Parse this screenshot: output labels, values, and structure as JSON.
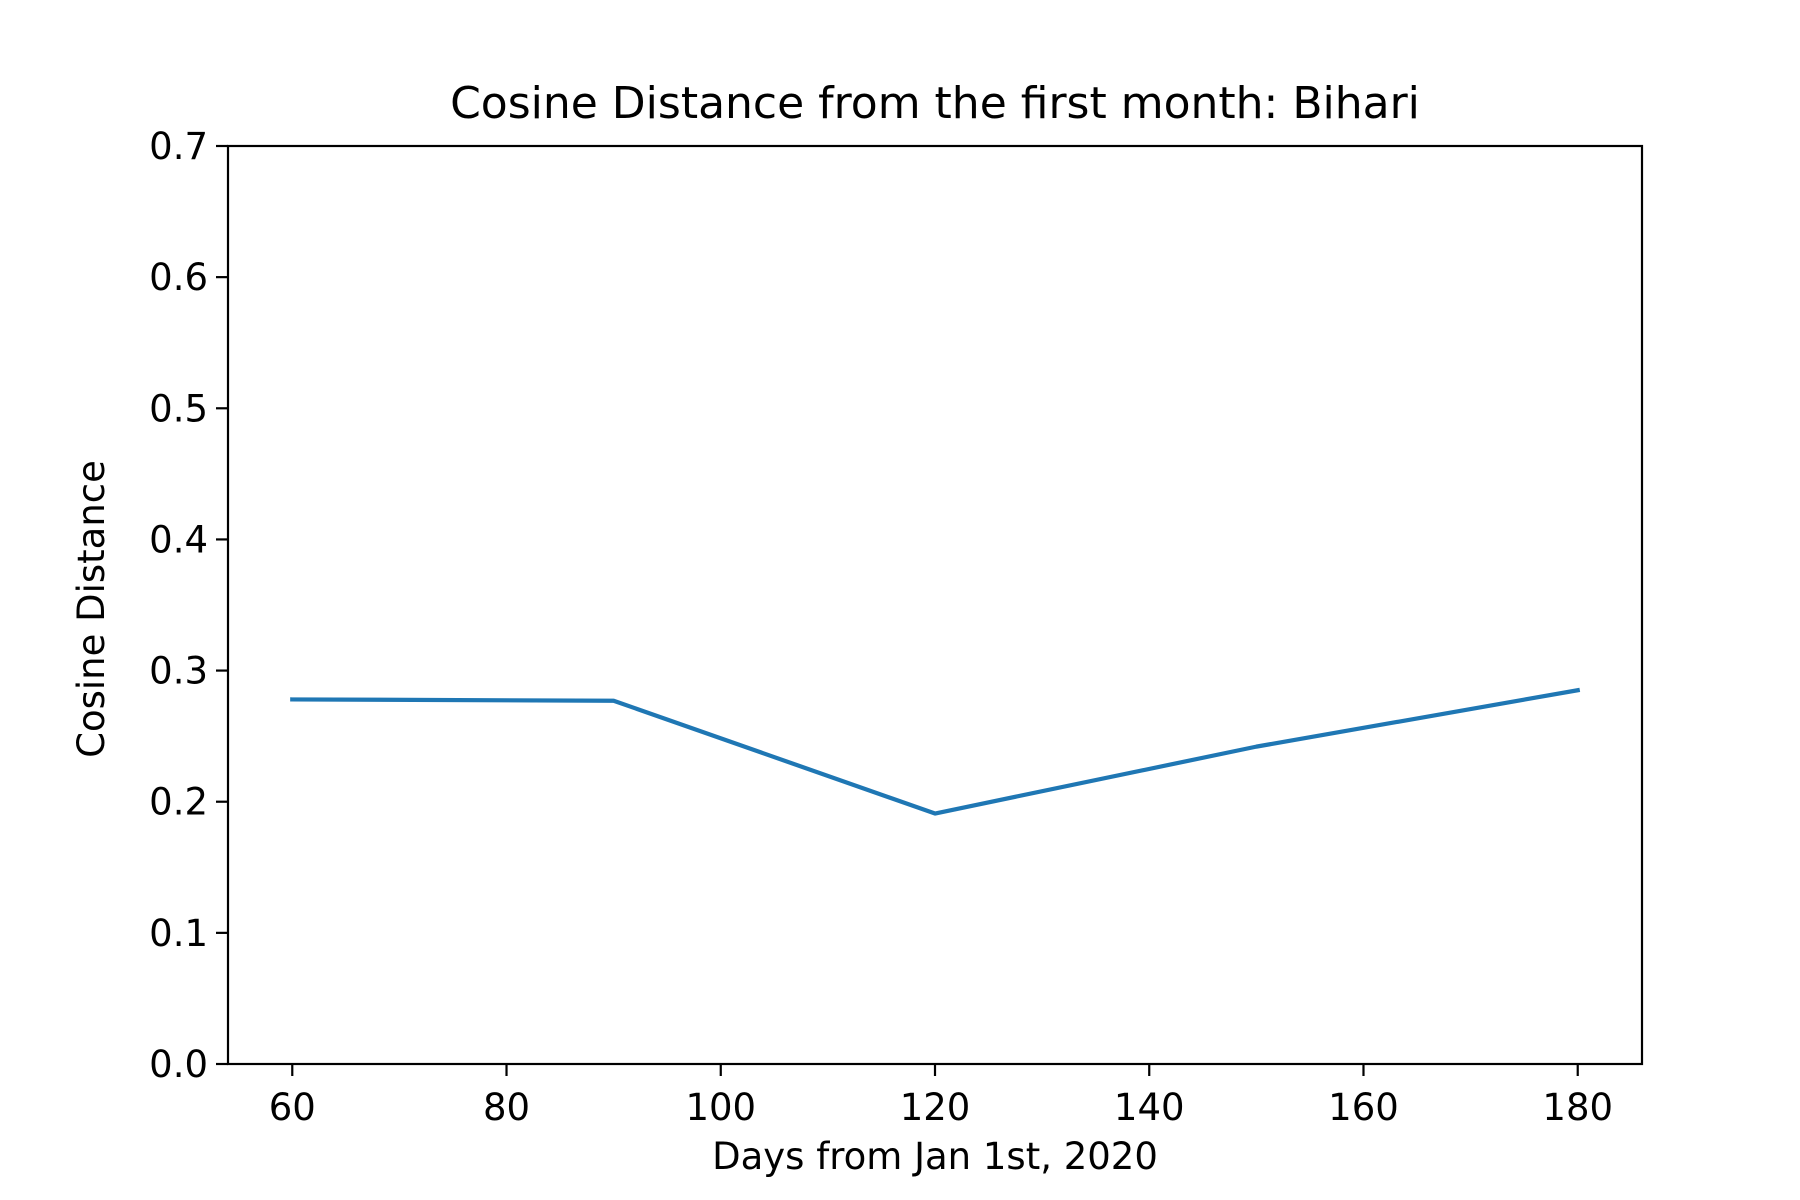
{
  "chart_data": {
    "type": "line",
    "title": "Cosine Distance from the first month: Bihari",
    "xlabel": "Days from Jan 1st, 2020",
    "ylabel": "Cosine Distance",
    "xlim": [
      54,
      186
    ],
    "ylim": [
      0,
      0.7
    ],
    "xticks": [
      60,
      80,
      100,
      120,
      140,
      160,
      180
    ],
    "xtick_labels": [
      "60",
      "80",
      "100",
      "120",
      "140",
      "160",
      "180"
    ],
    "yticks": [
      0,
      0.1,
      0.2,
      0.3,
      0.4,
      0.5,
      0.6,
      0.7
    ],
    "ytick_labels": [
      "0.0",
      "0.1",
      "0.2",
      "0.3",
      "0.4",
      "0.5",
      "0.6",
      "0.7"
    ],
    "grid": false,
    "series": [
      {
        "color": "#1f77b4",
        "x": [
          60,
          90,
          120,
          150,
          180
        ],
        "y": [
          0.278,
          0.277,
          0.191,
          0.242,
          0.285
        ]
      }
    ]
  }
}
